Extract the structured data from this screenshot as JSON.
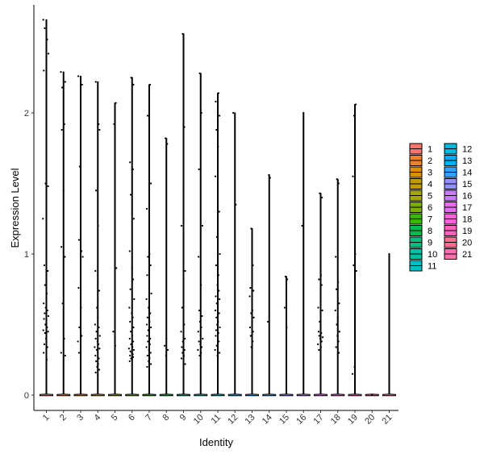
{
  "chart_data": {
    "type": "scatter",
    "subtype": "violin-jitter",
    "title": "",
    "xlabel": "Identity",
    "ylabel": "Expression Level",
    "categories": [
      "1",
      "2",
      "3",
      "4",
      "5",
      "6",
      "7",
      "8",
      "9",
      "10",
      "11",
      "12",
      "13",
      "14",
      "15",
      "16",
      "17",
      "18",
      "19",
      "20",
      "21"
    ],
    "ylim": [
      -0.12,
      2.8
    ],
    "yticks": [
      0,
      1,
      2
    ],
    "grid": false,
    "legend_position": "right",
    "colors": [
      "#F8766D",
      "#EA8331",
      "#D89000",
      "#C09B00",
      "#A3A500",
      "#7CAE00",
      "#39B600",
      "#00BB4E",
      "#00BF7D",
      "#00C1A3",
      "#00BFC4",
      "#00BAE0",
      "#00B0F6",
      "#35A2FF",
      "#9590FF",
      "#C77CFF",
      "#E76BF3",
      "#FA62DB",
      "#FF62BC",
      "#FF6C91",
      "#FF6FB0"
    ],
    "max_values": [
      2.66,
      2.29,
      2.26,
      2.22,
      2.07,
      2.25,
      2.2,
      1.82,
      2.56,
      2.28,
      2.14,
      2.0,
      1.18,
      1.56,
      0.84,
      2.0,
      1.43,
      1.53,
      2.06,
      0.0,
      1.0
    ],
    "points": [
      [
        [
          0.82,
          2.66
        ],
        [
          0.9,
          2.6
        ],
        [
          1.05,
          2.52
        ],
        [
          1.12,
          2.42
        ],
        [
          0.85,
          2.3
        ],
        [
          0.95,
          1.5
        ],
        [
          1.1,
          1.48
        ],
        [
          0.8,
          1.25
        ],
        [
          1.0,
          1.05
        ],
        [
          0.88,
          0.92
        ],
        [
          1.08,
          0.88
        ],
        [
          0.92,
          0.78
        ],
        [
          1.02,
          0.72
        ],
        [
          0.84,
          0.65
        ],
        [
          0.96,
          0.62
        ],
        [
          1.06,
          0.6
        ],
        [
          0.9,
          0.58
        ],
        [
          1.12,
          0.56
        ],
        [
          0.86,
          0.54
        ],
        [
          1.0,
          0.52
        ],
        [
          0.94,
          0.5
        ],
        [
          1.04,
          0.48
        ],
        [
          0.82,
          0.46
        ],
        [
          1.1,
          0.45
        ],
        [
          0.92,
          0.44
        ],
        [
          0.98,
          0.4
        ],
        [
          0.88,
          0.36
        ],
        [
          1.06,
          0.34
        ],
        [
          0.84,
          0.3
        ],
        [
          1.02,
          0.25
        ]
      ],
      [
        [
          0.85,
          2.29
        ],
        [
          1.1,
          2.22
        ],
        [
          0.92,
          2.18
        ],
        [
          1.05,
          1.92
        ],
        [
          0.9,
          1.88
        ],
        [
          1.0,
          1.45
        ],
        [
          0.88,
          1.05
        ],
        [
          1.08,
          0.98
        ],
        [
          0.95,
          0.65
        ],
        [
          1.04,
          0.4
        ],
        [
          0.86,
          0.3
        ],
        [
          1.1,
          0.28
        ]
      ],
      [
        [
          0.86,
          2.26
        ],
        [
          1.08,
          2.2
        ],
        [
          0.95,
          1.62
        ],
        [
          0.9,
          1.1
        ],
        [
          1.05,
          1.02
        ],
        [
          1.12,
          0.98
        ],
        [
          0.88,
          0.76
        ],
        [
          1.02,
          0.62
        ],
        [
          0.92,
          0.48
        ],
        [
          1.06,
          0.42
        ],
        [
          0.84,
          0.38
        ],
        [
          1.0,
          0.35
        ],
        [
          0.9,
          0.3
        ]
      ],
      [
        [
          0.88,
          2.22
        ],
        [
          1.05,
          1.92
        ],
        [
          1.1,
          1.88
        ],
        [
          0.9,
          1.45
        ],
        [
          1.02,
          1.2
        ],
        [
          0.86,
          0.88
        ],
        [
          1.08,
          0.74
        ],
        [
          0.95,
          0.62
        ],
        [
          1.0,
          0.55
        ],
        [
          0.84,
          0.5
        ],
        [
          1.06,
          0.48
        ],
        [
          0.92,
          0.45
        ],
        [
          1.12,
          0.42
        ],
        [
          0.88,
          0.4
        ],
        [
          0.98,
          0.38
        ],
        [
          1.04,
          0.36
        ],
        [
          0.82,
          0.34
        ],
        [
          1.1,
          0.33
        ],
        [
          0.94,
          0.32
        ],
        [
          1.0,
          0.3
        ],
        [
          0.86,
          0.28
        ],
        [
          1.06,
          0.26
        ],
        [
          0.9,
          0.24
        ],
        [
          1.02,
          0.22
        ],
        [
          0.96,
          0.2
        ],
        [
          1.08,
          0.18
        ],
        [
          0.88,
          0.16
        ],
        [
          1.0,
          0.14
        ]
      ],
      [
        [
          1.05,
          2.07
        ],
        [
          0.95,
          1.92
        ],
        [
          1.0,
          1.35
        ],
        [
          1.08,
          0.9
        ],
        [
          0.9,
          0.45
        ],
        [
          1.02,
          0.35
        ]
      ],
      [
        [
          0.95,
          2.25
        ],
        [
          1.08,
          2.2
        ],
        [
          0.88,
          1.65
        ],
        [
          1.05,
          1.6
        ],
        [
          0.92,
          1.42
        ],
        [
          1.1,
          1.25
        ],
        [
          0.86,
          1.02
        ],
        [
          1.0,
          0.9
        ],
        [
          1.06,
          0.82
        ],
        [
          0.9,
          0.75
        ],
        [
          1.12,
          0.68
        ],
        [
          0.84,
          0.62
        ],
        [
          0.98,
          0.58
        ],
        [
          1.04,
          0.55
        ],
        [
          0.88,
          0.52
        ],
        [
          1.08,
          0.48
        ],
        [
          0.92,
          0.45
        ],
        [
          1.0,
          0.42
        ],
        [
          0.86,
          0.4
        ],
        [
          1.06,
          0.38
        ],
        [
          0.94,
          0.36
        ],
        [
          1.02,
          0.34
        ],
        [
          0.82,
          0.33
        ],
        [
          1.1,
          0.32
        ],
        [
          0.9,
          0.31
        ],
        [
          0.98,
          0.3
        ],
        [
          1.04,
          0.29
        ],
        [
          0.88,
          0.28
        ],
        [
          1.06,
          0.27
        ],
        [
          0.94,
          0.26
        ],
        [
          1.0,
          0.25
        ],
        [
          0.86,
          0.24
        ]
      ],
      [
        [
          1.05,
          2.2
        ],
        [
          0.9,
          1.98
        ],
        [
          1.1,
          1.5
        ],
        [
          0.86,
          1.32
        ],
        [
          1.02,
          1.0
        ],
        [
          0.92,
          0.98
        ],
        [
          1.08,
          0.92
        ],
        [
          0.88,
          0.85
        ],
        [
          1.0,
          0.78
        ],
        [
          1.12,
          0.72
        ],
        [
          0.84,
          0.68
        ],
        [
          0.96,
          0.62
        ],
        [
          1.06,
          0.58
        ],
        [
          0.9,
          0.55
        ],
        [
          1.02,
          0.52
        ],
        [
          0.86,
          0.5
        ],
        [
          1.1,
          0.48
        ],
        [
          0.94,
          0.46
        ],
        [
          1.0,
          0.44
        ],
        [
          0.88,
          0.42
        ],
        [
          1.06,
          0.4
        ],
        [
          0.92,
          0.38
        ],
        [
          1.04,
          0.36
        ],
        [
          0.84,
          0.34
        ],
        [
          0.98,
          0.32
        ],
        [
          1.08,
          0.3
        ],
        [
          0.9,
          0.28
        ],
        [
          1.02,
          0.26
        ],
        [
          0.96,
          0.24
        ],
        [
          1.1,
          0.22
        ],
        [
          0.88,
          0.2
        ],
        [
          1.0,
          0.18
        ]
      ],
      [
        [
          0.95,
          1.82
        ],
        [
          1.05,
          1.78
        ],
        [
          1.0,
          0.4
        ],
        [
          0.9,
          0.35
        ],
        [
          1.08,
          0.32
        ],
        [
          0.98,
          0.28
        ]
      ],
      [
        [
          0.95,
          2.56
        ],
        [
          1.05,
          1.9
        ],
        [
          1.0,
          1.45
        ],
        [
          0.88,
          1.2
        ],
        [
          1.1,
          0.88
        ],
        [
          0.92,
          0.62
        ],
        [
          1.04,
          0.5
        ],
        [
          0.86,
          0.45
        ],
        [
          1.08,
          0.4
        ],
        [
          0.96,
          0.38
        ],
        [
          1.0,
          0.36
        ],
        [
          0.9,
          0.34
        ],
        [
          1.06,
          0.32
        ],
        [
          0.94,
          0.3
        ],
        [
          1.02,
          0.28
        ],
        [
          0.88,
          0.26
        ],
        [
          1.1,
          0.22
        ]
      ],
      [
        [
          0.95,
          2.28
        ],
        [
          1.05,
          2.0
        ],
        [
          0.9,
          1.6
        ],
        [
          1.1,
          1.2
        ],
        [
          0.88,
          0.98
        ],
        [
          1.02,
          0.78
        ],
        [
          0.92,
          0.6
        ],
        [
          1.08,
          0.56
        ],
        [
          0.96,
          0.52
        ],
        [
          1.04,
          0.48
        ],
        [
          0.86,
          0.45
        ],
        [
          1.0,
          0.42
        ],
        [
          1.12,
          0.4
        ],
        [
          0.9,
          0.38
        ],
        [
          0.98,
          0.36
        ],
        [
          1.06,
          0.34
        ],
        [
          0.84,
          0.32
        ],
        [
          1.02,
          0.3
        ],
        [
          0.94,
          0.28
        ]
      ],
      [
        [
          1.05,
          2.14
        ],
        [
          0.88,
          2.08
        ],
        [
          1.1,
          1.98
        ],
        [
          0.92,
          1.88
        ],
        [
          1.02,
          1.76
        ],
        [
          0.86,
          1.55
        ],
        [
          1.08,
          1.3
        ],
        [
          0.95,
          1.12
        ],
        [
          1.12,
          1.0
        ],
        [
          0.9,
          0.92
        ],
        [
          1.04,
          0.85
        ],
        [
          0.98,
          0.78
        ],
        [
          1.06,
          0.74
        ],
        [
          0.88,
          0.7
        ],
        [
          1.1,
          0.68
        ],
        [
          0.94,
          0.65
        ],
        [
          1.0,
          0.62
        ],
        [
          0.86,
          0.6
        ],
        [
          1.08,
          0.58
        ],
        [
          0.92,
          0.55
        ],
        [
          1.02,
          0.52
        ],
        [
          0.96,
          0.5
        ],
        [
          1.12,
          0.48
        ],
        [
          0.9,
          0.46
        ],
        [
          1.04,
          0.44
        ],
        [
          0.88,
          0.42
        ],
        [
          1.0,
          0.4
        ],
        [
          1.06,
          0.38
        ],
        [
          0.94,
          0.35
        ],
        [
          0.84,
          0.32
        ],
        [
          1.1,
          0.3
        ],
        [
          0.98,
          0.28
        ]
      ],
      [
        [
          0.9,
          2.0
        ],
        [
          1.05,
          1.35
        ]
      ],
      [
        [
          0.95,
          1.18
        ],
        [
          1.05,
          0.92
        ],
        [
          0.9,
          0.76
        ],
        [
          1.08,
          0.74
        ],
        [
          0.86,
          0.7
        ],
        [
          1.02,
          0.6
        ],
        [
          0.94,
          0.58
        ],
        [
          1.1,
          0.55
        ],
        [
          1.0,
          0.52
        ],
        [
          0.88,
          0.48
        ],
        [
          1.06,
          0.45
        ],
        [
          0.92,
          0.42
        ],
        [
          1.04,
          0.38
        ],
        [
          0.96,
          0.34
        ],
        [
          1.0,
          0.3
        ]
      ],
      [
        [
          0.98,
          1.56
        ],
        [
          1.05,
          1.54
        ],
        [
          0.92,
          0.52
        ]
      ],
      [
        [
          0.95,
          0.84
        ],
        [
          1.05,
          0.82
        ],
        [
          0.9,
          0.62
        ],
        [
          1.02,
          0.48
        ]
      ],
      [
        [
          1.0,
          2.0
        ],
        [
          0.92,
          1.2
        ]
      ],
      [
        [
          0.95,
          1.43
        ],
        [
          1.08,
          1.4
        ],
        [
          1.02,
          0.85
        ],
        [
          0.9,
          0.82
        ],
        [
          1.06,
          0.78
        ],
        [
          0.86,
          0.62
        ],
        [
          1.1,
          0.6
        ],
        [
          0.94,
          0.52
        ],
        [
          1.0,
          0.48
        ],
        [
          0.88,
          0.45
        ],
        [
          1.04,
          0.44
        ],
        [
          0.92,
          0.42
        ],
        [
          1.12,
          0.41
        ],
        [
          0.98,
          0.4
        ],
        [
          1.06,
          0.38
        ],
        [
          0.84,
          0.36
        ],
        [
          1.02,
          0.34
        ],
        [
          0.9,
          0.32
        ]
      ],
      [
        [
          0.95,
          1.53
        ],
        [
          1.05,
          1.5
        ],
        [
          0.88,
          0.98
        ],
        [
          1.02,
          0.8
        ],
        [
          0.92,
          0.75
        ],
        [
          1.08,
          0.65
        ],
        [
          0.86,
          0.6
        ],
        [
          1.0,
          0.55
        ],
        [
          0.94,
          0.5
        ],
        [
          1.1,
          0.45
        ],
        [
          0.98,
          0.42
        ],
        [
          1.04,
          0.38
        ],
        [
          0.9,
          0.34
        ],
        [
          1.06,
          0.3
        ]
      ],
      [
        [
          1.05,
          2.06
        ],
        [
          0.95,
          1.98
        ],
        [
          0.88,
          1.55
        ],
        [
          1.02,
          1.0
        ],
        [
          0.92,
          0.92
        ],
        [
          1.08,
          0.88
        ],
        [
          0.98,
          0.2
        ],
        [
          0.86,
          0.15
        ]
      ],
      [],
      [
        [
          1.0,
          1.0
        ]
      ]
    ]
  }
}
